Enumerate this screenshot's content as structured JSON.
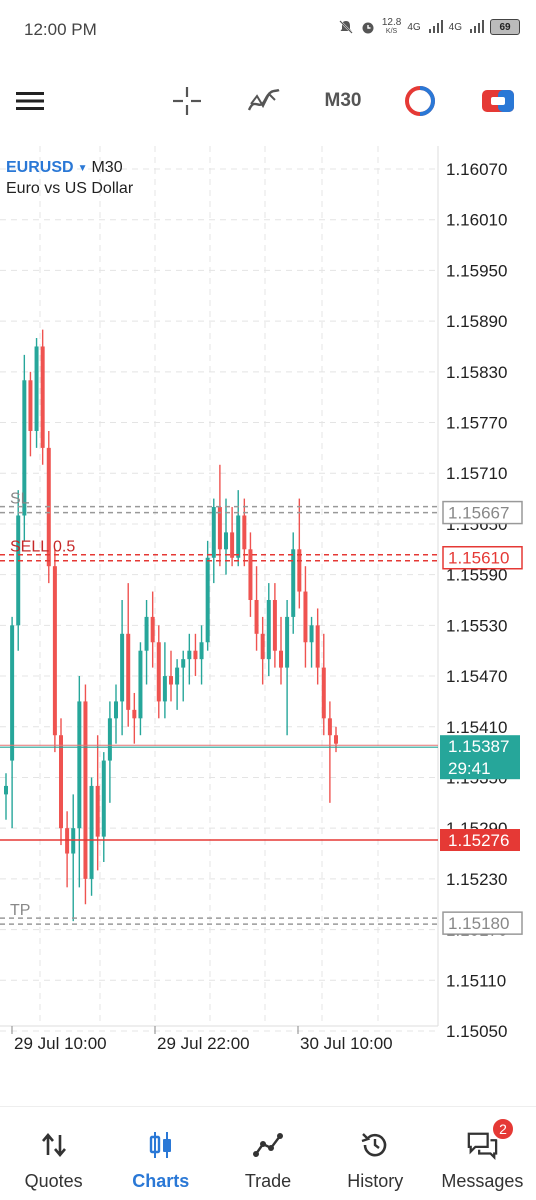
{
  "status_bar": {
    "time": "12:00 PM",
    "speed": "12.8",
    "speed_unit": "K/S",
    "net1": "4G",
    "net2": "4G",
    "battery": "69"
  },
  "toolbar": {
    "timeframe": "M30"
  },
  "chart": {
    "symbol": "EURUSD",
    "timeframe": "M30",
    "description": "Euro vs US Dollar",
    "sl_label": "SL",
    "sell_label": "SELL 0.5",
    "tp_label": "TP",
    "current_price": "1.15387",
    "countdown": "29:41",
    "sl_price": "1.15667",
    "sell_price": "1.15610",
    "red_price": "1.15276",
    "tp_price": "1.15180",
    "price_axis": [
      "1.16070",
      "1.16010",
      "1.15950",
      "1.15890",
      "1.15830",
      "1.15770",
      "1.15710",
      "1.15650",
      "1.15590",
      "1.15530",
      "1.15470",
      "1.15410",
      "1.15350",
      "1.15290",
      "1.15230",
      "1.15170",
      "1.15110",
      "1.15050"
    ],
    "time_axis": [
      "29 Jul 10:00",
      "29 Jul 22:00",
      "30 Jul 10:00"
    ]
  },
  "chart_data": {
    "type": "candlestick",
    "ylim": [
      1.15,
      1.161
    ],
    "bull_color": "#26a69a",
    "bear_color": "#ef5350",
    "candles": [
      [
        1.1533,
        1.15355,
        1.153,
        1.1534
      ],
      [
        1.1537,
        1.1554,
        1.1529,
        1.1553
      ],
      [
        1.1553,
        1.1569,
        1.155,
        1.1566
      ],
      [
        1.1566,
        1.1585,
        1.1563,
        1.1582
      ],
      [
        1.1582,
        1.1583,
        1.1573,
        1.1576
      ],
      [
        1.1576,
        1.1587,
        1.1574,
        1.1586
      ],
      [
        1.1586,
        1.1588,
        1.1572,
        1.1574
      ],
      [
        1.1574,
        1.1576,
        1.1558,
        1.156
      ],
      [
        1.156,
        1.1562,
        1.1538,
        1.154
      ],
      [
        1.154,
        1.1542,
        1.1527,
        1.1529
      ],
      [
        1.1529,
        1.1531,
        1.1522,
        1.1526
      ],
      [
        1.1526,
        1.1533,
        1.1518,
        1.1529
      ],
      [
        1.1529,
        1.1547,
        1.1522,
        1.1544
      ],
      [
        1.1544,
        1.1546,
        1.152,
        1.1523
      ],
      [
        1.1523,
        1.1535,
        1.1521,
        1.1534
      ],
      [
        1.1534,
        1.154,
        1.1524,
        1.1528
      ],
      [
        1.1528,
        1.1538,
        1.1525,
        1.1537
      ],
      [
        1.1537,
        1.1544,
        1.1532,
        1.1542
      ],
      [
        1.1542,
        1.1546,
        1.1539,
        1.1544
      ],
      [
        1.1544,
        1.1556,
        1.154,
        1.1552
      ],
      [
        1.1552,
        1.1558,
        1.1541,
        1.1543
      ],
      [
        1.1543,
        1.1545,
        1.1539,
        1.1542
      ],
      [
        1.1542,
        1.1551,
        1.154,
        1.155
      ],
      [
        1.155,
        1.1556,
        1.1546,
        1.1554
      ],
      [
        1.1554,
        1.1557,
        1.1548,
        1.1551
      ],
      [
        1.1551,
        1.1553,
        1.1542,
        1.1544
      ],
      [
        1.1544,
        1.1551,
        1.1542,
        1.1547
      ],
      [
        1.1547,
        1.155,
        1.1544,
        1.1546
      ],
      [
        1.1546,
        1.1549,
        1.1543,
        1.1548
      ],
      [
        1.1548,
        1.155,
        1.1544,
        1.1549
      ],
      [
        1.1549,
        1.1552,
        1.1546,
        1.155
      ],
      [
        1.155,
        1.1552,
        1.1547,
        1.1549
      ],
      [
        1.1549,
        1.1553,
        1.1546,
        1.1551
      ],
      [
        1.1551,
        1.1563,
        1.155,
        1.1561
      ],
      [
        1.1561,
        1.1568,
        1.1558,
        1.1567
      ],
      [
        1.1567,
        1.1572,
        1.156,
        1.1562
      ],
      [
        1.1562,
        1.1568,
        1.1559,
        1.1564
      ],
      [
        1.1564,
        1.1567,
        1.156,
        1.1561
      ],
      [
        1.1561,
        1.1569,
        1.156,
        1.1566
      ],
      [
        1.1566,
        1.1568,
        1.156,
        1.1562
      ],
      [
        1.1562,
        1.1564,
        1.1554,
        1.1556
      ],
      [
        1.1556,
        1.156,
        1.155,
        1.1552
      ],
      [
        1.1552,
        1.1554,
        1.1546,
        1.1549
      ],
      [
        1.1549,
        1.1558,
        1.1547,
        1.1556
      ],
      [
        1.1556,
        1.1558,
        1.1548,
        1.155
      ],
      [
        1.155,
        1.1554,
        1.1546,
        1.1548
      ],
      [
        1.1548,
        1.1556,
        1.154,
        1.1554
      ],
      [
        1.1554,
        1.1564,
        1.1552,
        1.1562
      ],
      [
        1.1562,
        1.1568,
        1.1555,
        1.1557
      ],
      [
        1.1557,
        1.156,
        1.1548,
        1.1551
      ],
      [
        1.1551,
        1.1554,
        1.1548,
        1.1553
      ],
      [
        1.1553,
        1.1555,
        1.1546,
        1.1548
      ],
      [
        1.1548,
        1.1552,
        1.154,
        1.1542
      ],
      [
        1.1542,
        1.1544,
        1.1532,
        1.154
      ],
      [
        1.154,
        1.1541,
        1.1538,
        1.1539
      ]
    ],
    "levels": {
      "sl": 1.15667,
      "sell": 1.1561,
      "current": 1.15387,
      "red": 1.15276,
      "tp": 1.1518
    }
  }
}
